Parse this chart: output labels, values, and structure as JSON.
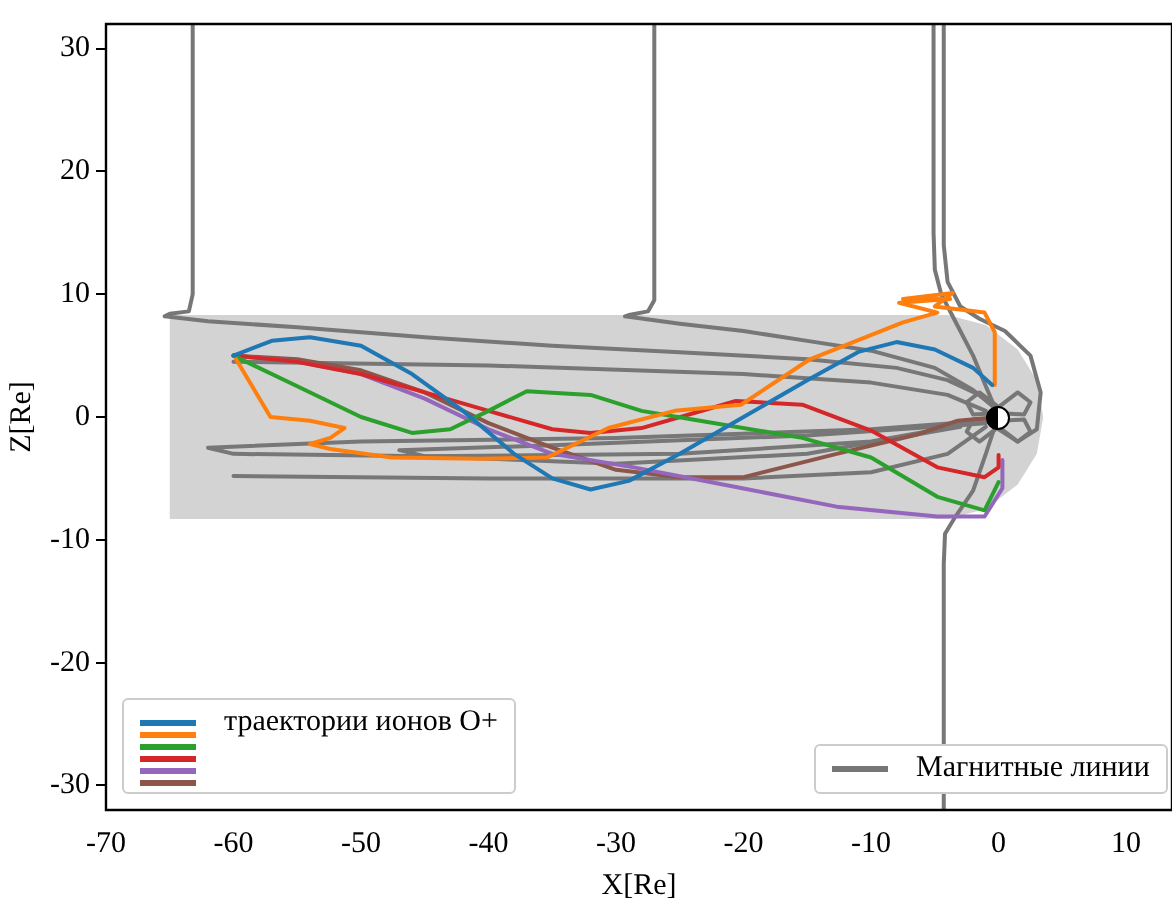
{
  "chart_data": {
    "type": "line",
    "xlabel": "X[Re]",
    "ylabel": "Z[Re]",
    "xlim": [
      -70,
      13.6
    ],
    "ylim": [
      -32,
      32
    ],
    "xticks": [
      -70,
      -60,
      -50,
      -40,
      -30,
      -20,
      -10,
      0,
      10
    ],
    "yticks": [
      -30,
      -20,
      -10,
      0,
      10,
      20,
      30
    ],
    "grid": false,
    "legend": "bottom",
    "marker": "none",
    "line_style": "solid",
    "series": [
      {
        "type": "area",
        "color": "#d3d3d3",
        "x": [
          -65,
          -4,
          -1,
          1.5,
          3,
          3.5,
          3,
          1.5,
          -1,
          -4,
          -65
        ],
        "values": [
          8.3,
          8.3,
          7.5,
          5.5,
          3,
          0,
          -3,
          -5.5,
          -7.5,
          -8.3,
          -8.3
        ]
      },
      {
        "name": "траектории ионов O+",
        "color": "#1f77b4",
        "x": [
          -60,
          -57,
          -54,
          -50,
          -46,
          -42,
          -38,
          -35,
          -32,
          -29,
          -25,
          -20,
          -15,
          -11,
          -8,
          -5,
          -2,
          -0.5
        ],
        "values": [
          5,
          6.2,
          6.5,
          5.8,
          3.5,
          0.5,
          -3,
          -5,
          -5.9,
          -5.2,
          -3,
          0,
          3,
          5.3,
          6.1,
          5.5,
          4,
          2.6
        ]
      },
      {
        "color": "#ff7f0e",
        "x": [
          -59.8,
          -57.1,
          -54,
          -51.3,
          -52.4,
          -54,
          -52.4,
          -47.6,
          -40.8,
          -35.4,
          -30.6,
          -25.4,
          -20.2,
          -14.8,
          -7.5,
          -4.8,
          -7.8,
          -3.8,
          -7.5,
          -3.6,
          -5,
          -1.1,
          -0.3,
          -0.3
        ],
        "values": [
          4.7,
          0,
          -0.3,
          -0.9,
          -1.7,
          -2.2,
          -2.6,
          -3.3,
          -3.4,
          -3.3,
          -0.9,
          0.5,
          1,
          4.7,
          7.7,
          8.5,
          9.3,
          9.6,
          9.6,
          10.1,
          9,
          8.5,
          6.9,
          2.6
        ]
      },
      {
        "color": "#2ca02c",
        "x": [
          -60,
          -55,
          -50,
          -46,
          -43,
          -40,
          -37,
          -32,
          -28,
          -24,
          -15.4,
          -10,
          -4.8,
          -1.1,
          0
        ],
        "values": [
          5,
          2.5,
          0,
          -1.3,
          -1,
          0.5,
          2.1,
          1.8,
          0.5,
          -0.2,
          -1.7,
          -3.3,
          -6.5,
          -7.6,
          -5.3
        ]
      },
      {
        "color": "#d62728",
        "x": [
          -60,
          -55,
          -50,
          -45,
          -40,
          -35,
          -32,
          -28,
          -20.6,
          -15.4,
          -10,
          -4.8,
          -1.1,
          0,
          0
        ],
        "values": [
          5,
          4.5,
          3.5,
          2,
          0.5,
          -1,
          -1.3,
          -0.9,
          1.3,
          1,
          -1.1,
          -4.1,
          -4.9,
          -4.1,
          -3.1
        ]
      },
      {
        "color": "#9467bd",
        "x": [
          -60,
          -55,
          -50,
          -45,
          -40,
          -35,
          -28.6,
          -20.6,
          -12.7,
          -4.8,
          -1.1,
          0.3,
          0.3
        ],
        "values": [
          5,
          4.5,
          3.5,
          1.5,
          -1,
          -3,
          -4.1,
          -5.7,
          -7.3,
          -8.1,
          -8.1,
          -5.8,
          -3.5
        ]
      },
      {
        "color": "#8c564b",
        "x": [
          -60,
          -55,
          -50,
          -45,
          -40,
          -35,
          -30,
          -25,
          -20,
          -12.7,
          -6.3,
          -3.2,
          0
        ],
        "values": [
          5,
          4.7,
          3.8,
          2,
          -0.5,
          -2.5,
          -4.3,
          -4.9,
          -4.9,
          -3,
          -1.4,
          -0.3,
          0
        ]
      },
      {
        "name": "Магнитные линии",
        "color": "#777777",
        "x": [
          -63.2,
          -63.2,
          -63.5,
          -65,
          -65.4,
          -62,
          -55,
          -45,
          -35,
          -25.4,
          -15,
          -8,
          -4,
          -1.5,
          0
        ],
        "values": [
          32,
          10,
          8.6,
          8.4,
          8.2,
          7.8,
          7.3,
          6.5,
          5.8,
          5.3,
          4.7,
          4,
          3,
          1.8,
          0.5
        ]
      },
      {
        "color": "#777777",
        "x": [
          -27,
          -27,
          -27.5,
          -29,
          -29.3,
          -25,
          -20,
          -15,
          -10,
          -5,
          -2,
          0
        ],
        "values": [
          32,
          9.5,
          8.6,
          8.3,
          8.2,
          7.6,
          7,
          6.2,
          5.4,
          4,
          2.2,
          0.5
        ]
      },
      {
        "color": "#777777",
        "x": [
          -5.1,
          -5.1,
          -5,
          -4.5,
          -3.5,
          -2,
          -1,
          -0.3
        ],
        "values": [
          32,
          15,
          12,
          10,
          8,
          5,
          2.5,
          0.8
        ]
      },
      {
        "color": "#777777",
        "x": [
          -4.3,
          -4.3,
          -4,
          -3,
          -1.5,
          0.5,
          2.5,
          3.3,
          3,
          1.5,
          0
        ],
        "values": [
          32,
          14,
          11,
          9,
          8,
          7,
          5,
          2,
          -1,
          -2,
          -1
        ]
      },
      {
        "color": "#777777",
        "x": [
          -4.3,
          -4.3,
          -4.2,
          -3.5,
          -2,
          -1,
          -0.3
        ],
        "values": [
          -32,
          -12,
          -9.5,
          -8.3,
          -6,
          -3,
          -0.8
        ]
      },
      {
        "color": "#777777",
        "x": [
          -1,
          -10,
          -30,
          -50,
          -62,
          -60,
          -45,
          -25,
          -10,
          -2
        ],
        "values": [
          -0.3,
          -1,
          -1.7,
          -2,
          -2.5,
          -3,
          -3.2,
          -3,
          -2,
          -0.5
        ]
      },
      {
        "color": "#777777",
        "x": [
          -1,
          -15,
          -35,
          -47,
          -45,
          -30,
          -15,
          -3
        ],
        "values": [
          -0.5,
          -1.5,
          -2.3,
          -2.7,
          -3.2,
          -3.8,
          -3,
          -0.8
        ]
      },
      {
        "color": "#777777",
        "x": [
          -60,
          -40,
          -20,
          -10,
          -4,
          -1
        ],
        "values": [
          4.5,
          4.2,
          3.5,
          2.8,
          1.8,
          0.5
        ]
      },
      {
        "color": "#777777",
        "x": [
          -60,
          -40,
          -20,
          -10,
          -4,
          -1
        ],
        "values": [
          -4.8,
          -5,
          -5,
          -4.5,
          -3,
          -0.8
        ]
      },
      {
        "color": "#777777",
        "x": [
          0,
          1.5,
          2.5,
          2,
          0.3
        ],
        "values": [
          0.8,
          2,
          1.2,
          0.2,
          0.3
        ]
      },
      {
        "color": "#777777",
        "x": [
          0,
          -1.5,
          -2.5,
          -2,
          -0.3
        ],
        "values": [
          0.8,
          2,
          1.2,
          0.2,
          0.3
        ]
      },
      {
        "color": "#777777",
        "x": [
          0,
          1.5,
          2.5,
          2,
          0.3
        ],
        "values": [
          -0.8,
          -2,
          -1.2,
          -0.2,
          -0.3
        ]
      },
      {
        "color": "#777777",
        "x": [
          0,
          -1.5,
          -2.5,
          -2,
          -0.3
        ],
        "values": [
          -0.8,
          -2,
          -1.2,
          -0.2,
          -0.3
        ]
      }
    ]
  }
}
